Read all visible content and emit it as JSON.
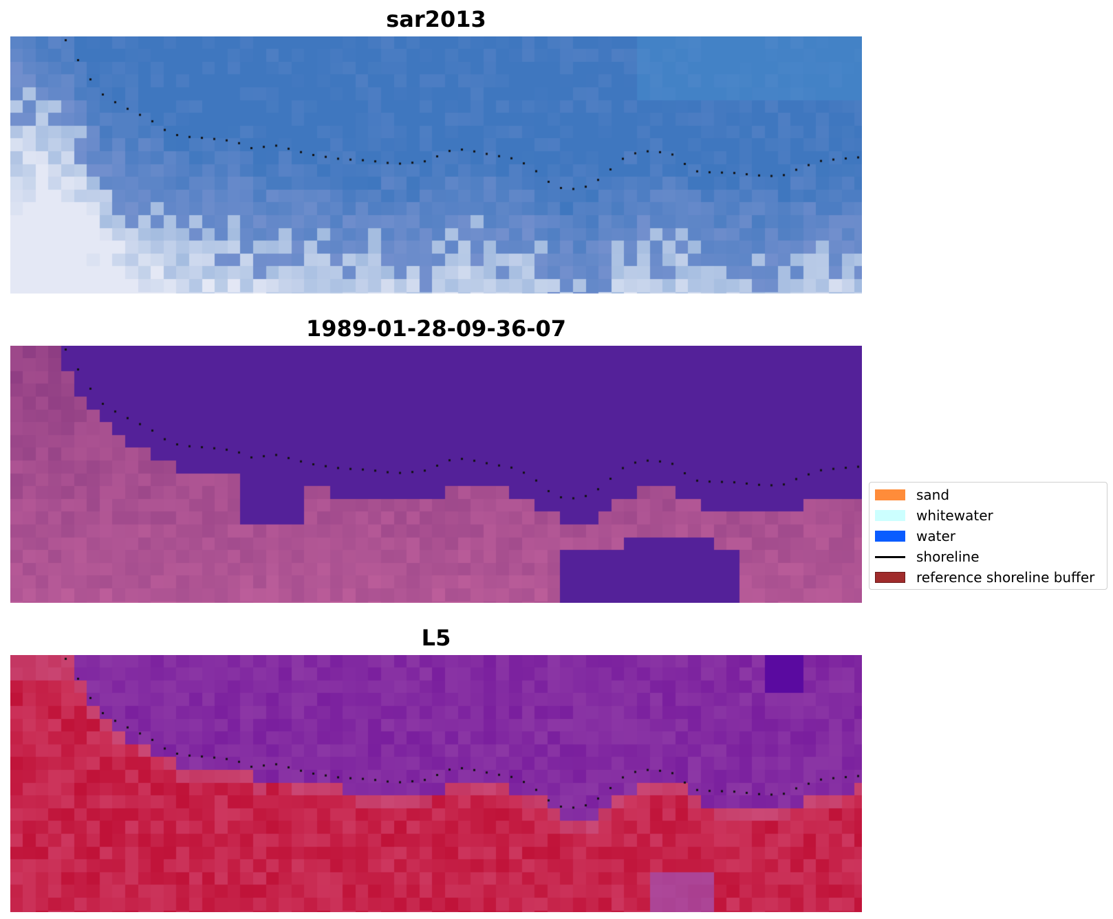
{
  "panels": [
    {
      "id": "sar",
      "title": "sar2013",
      "colormap": "sar"
    },
    {
      "id": "classification",
      "title": "1989-01-28-09-36-07",
      "colormap": "classified"
    },
    {
      "id": "l5",
      "title": "L5",
      "colormap": "index"
    }
  ],
  "legend": {
    "items": [
      {
        "label": "sand",
        "color": "#ff8c3a",
        "kind": "patch"
      },
      {
        "label": "whitewater",
        "color": "#ccffff",
        "kind": "patch"
      },
      {
        "label": "water",
        "color": "#0a5cff",
        "kind": "patch"
      },
      {
        "label": "shoreline",
        "color": "#000000",
        "kind": "line"
      },
      {
        "label": "reference shoreline buffer",
        "color": "#a02c2c",
        "kind": "patch"
      }
    ]
  },
  "colors": {
    "water_class": "#542199",
    "sar_deep": "#3f77bf",
    "l5_water": "#7a1f9e",
    "l5_land": "#c01238"
  }
}
